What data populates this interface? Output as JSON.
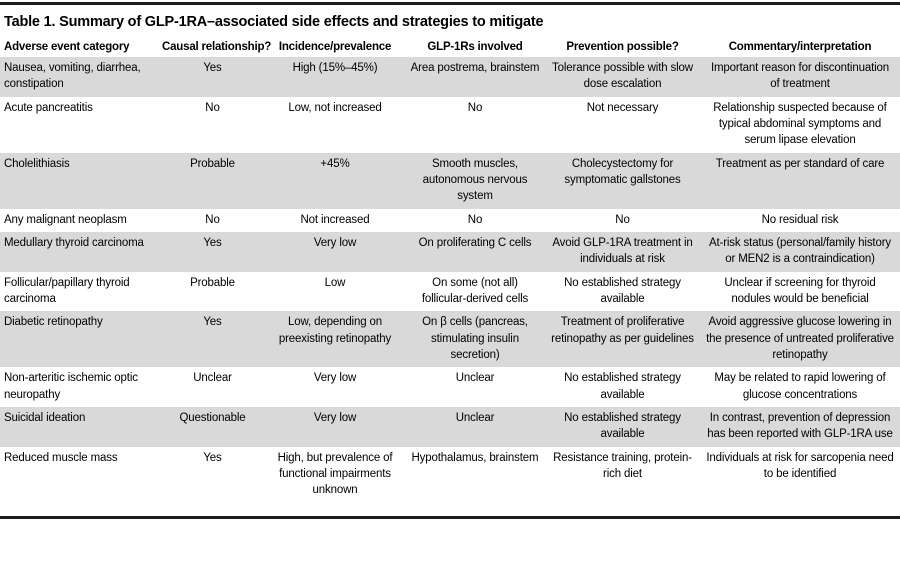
{
  "title": "Table 1. Summary of GLP-1RA–associated side effects and strategies to mitigate",
  "colors": {
    "row_shade": "#d9d9d9",
    "rule": "#1c1c1c",
    "text": "#000000",
    "background": "#ffffff"
  },
  "table": {
    "columns": [
      "Adverse event category",
      "Causal relationship?",
      "Incidence/prevalence",
      "GLP-1Rs involved",
      "Prevention possible?",
      "Commentary/interpretation"
    ],
    "rows": [
      {
        "shaded": true,
        "cells": [
          "Nausea, vomiting, diarrhea, constipation",
          "Yes",
          "High (15%–45%)",
          "Area postrema, brainstem",
          "Tolerance possible with slow dose escalation",
          "Important reason for discontinuation of treatment"
        ]
      },
      {
        "shaded": false,
        "cells": [
          "Acute pancreatitis",
          "No",
          "Low, not increased",
          "No",
          "Not necessary",
          "Relationship suspected because of typical abdominal symptoms and serum lipase elevation"
        ]
      },
      {
        "shaded": true,
        "cells": [
          "Cholelithiasis",
          "Probable",
          "+45%",
          "Smooth muscles, autonomous nervous system",
          "Cholecystectomy for symptomatic gallstones",
          "Treatment as per standard of care"
        ]
      },
      {
        "shaded": false,
        "cells": [
          "Any malignant neoplasm",
          "No",
          "Not increased",
          "No",
          "No",
          "No residual risk"
        ]
      },
      {
        "shaded": true,
        "cells": [
          "Medullary thyroid carcinoma",
          "Yes",
          "Very low",
          "On proliferating C cells",
          "Avoid GLP-1RA treatment in individuals at risk",
          "At-risk status (personal/family history or MEN2 is a contraindication)"
        ]
      },
      {
        "shaded": false,
        "cells": [
          "Follicular/papillary thyroid carcinoma",
          "Probable",
          "Low",
          "On some (not all) follicular-derived cells",
          "No established strategy available",
          "Unclear if screening for thyroid nodules would be beneficial"
        ]
      },
      {
        "shaded": true,
        "cells": [
          "Diabetic retinopathy",
          "Yes",
          "Low, depending on preexisting retinopathy",
          "On β cells (pancreas, stimulating insulin secretion)",
          "Treatment of proliferative retinopathy as per guidelines",
          "Avoid aggressive glucose lowering in the presence of untreated proliferative retinopathy"
        ]
      },
      {
        "shaded": false,
        "cells": [
          "Non-arteritic ischemic optic neuropathy",
          "Unclear",
          "Very low",
          "Unclear",
          "No established strategy available",
          "May be related to rapid lowering of glucose concentrations"
        ]
      },
      {
        "shaded": true,
        "cells": [
          "Suicidal ideation",
          "Questionable",
          "Very low",
          "Unclear",
          "No established strategy available",
          "In contrast, prevention of depression has been reported with GLP-1RA use"
        ]
      },
      {
        "shaded": false,
        "cells": [
          "Reduced muscle mass",
          "Yes",
          "High, but prevalence of functional impairments unknown",
          "Hypothalamus, brainstem",
          "Resistance training, protein-rich diet",
          "Individuals at risk for sarcopenia need to be identified"
        ]
      }
    ]
  }
}
